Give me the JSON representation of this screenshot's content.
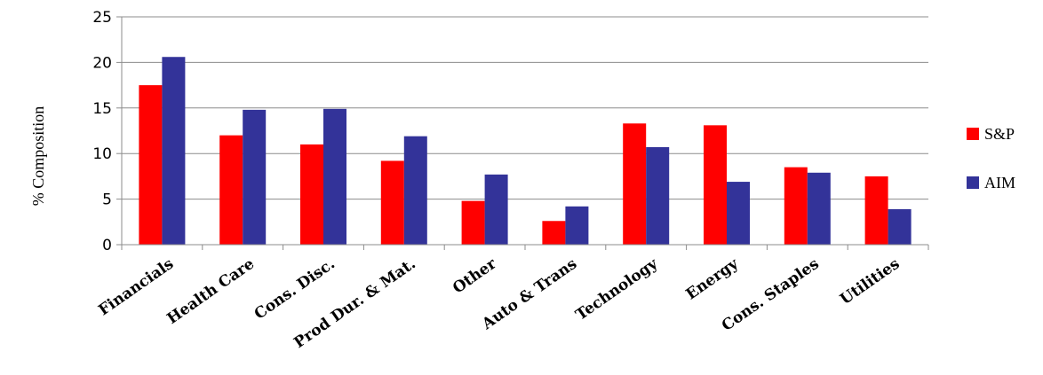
{
  "chart_data": {
    "type": "bar",
    "categories": [
      "Financials",
      "Health Care",
      "Cons. Disc.",
      "Prod Dur. & Mat.",
      "Other",
      "Auto & Trans",
      "Technology",
      "Energy",
      "Cons. Staples",
      "Utilities"
    ],
    "series": [
      {
        "name": "S&P",
        "color": "#ff0000",
        "values": [
          17.5,
          12.0,
          11.0,
          9.2,
          4.8,
          2.6,
          13.3,
          13.1,
          8.5,
          7.5
        ]
      },
      {
        "name": "AIM",
        "color": "#333399",
        "values": [
          20.6,
          14.8,
          14.9,
          11.9,
          7.7,
          4.2,
          10.7,
          6.9,
          7.9,
          3.9
        ]
      }
    ],
    "ylabel": "% Composition",
    "xlabel": "",
    "ylim": [
      0,
      25
    ],
    "yticks": [
      0,
      5,
      10,
      15,
      20,
      25
    ],
    "grid": true,
    "legend": "right"
  }
}
